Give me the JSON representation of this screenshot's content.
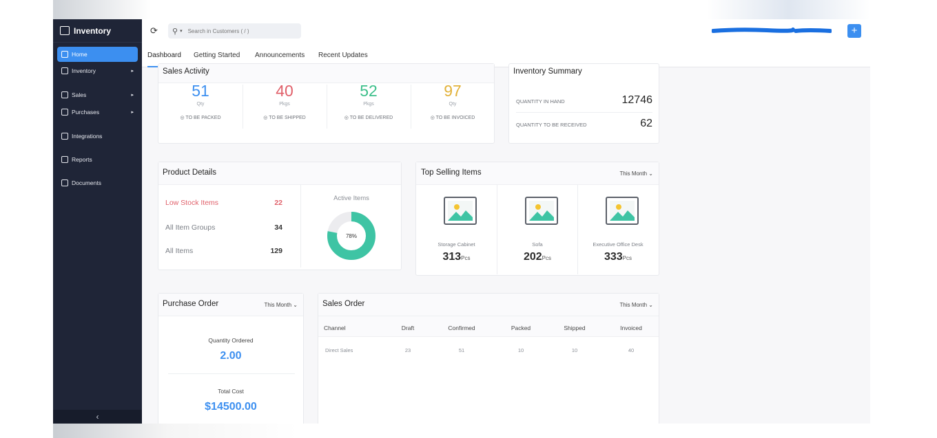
{
  "app": {
    "brand": "Inventory"
  },
  "sidebar": {
    "items": [
      {
        "label": "Home",
        "icon": "home-icon",
        "active": true,
        "has_arrow": false
      },
      {
        "label": "Inventory",
        "icon": "tag-icon",
        "active": false,
        "has_arrow": true
      },
      {
        "label": "Sales",
        "icon": "cart-icon",
        "active": false,
        "has_arrow": true
      },
      {
        "label": "Purchases",
        "icon": "bag-icon",
        "active": false,
        "has_arrow": true
      },
      {
        "label": "Integrations",
        "icon": "integration-icon",
        "active": false,
        "has_arrow": false
      },
      {
        "label": "Reports",
        "icon": "bar-chart-icon",
        "active": false,
        "has_arrow": false
      },
      {
        "label": "Documents",
        "icon": "folder-icon",
        "active": false,
        "has_arrow": false
      }
    ],
    "collapse_glyph": "‹"
  },
  "header": {
    "search_placeholder": "Search in Customers ( / )",
    "plus_glyph": "+"
  },
  "tabs": [
    {
      "label": "Dashboard",
      "active": true
    },
    {
      "label": "Getting Started",
      "active": false
    },
    {
      "label": "Announcements",
      "active": false
    },
    {
      "label": "Recent Updates",
      "active": false
    }
  ],
  "sales_activity": {
    "title": "Sales Activity",
    "stats": [
      {
        "value": "51",
        "unit": "Qty",
        "label": "TO BE PACKED",
        "color": "#3c8ff0"
      },
      {
        "value": "40",
        "unit": "Pkgs",
        "label": "TO BE SHIPPED",
        "color": "#e0606a"
      },
      {
        "value": "52",
        "unit": "Pkgs",
        "label": "TO BE DELIVERED",
        "color": "#3cbf8a"
      },
      {
        "value": "97",
        "unit": "Qty",
        "label": "TO BE INVOICED",
        "color": "#e2b23a"
      }
    ]
  },
  "inventory_summary": {
    "title": "Inventory Summary",
    "rows": [
      {
        "label": "QUANTITY IN HAND",
        "value": "12746"
      },
      {
        "label": "QUANTITY TO BE RECEIVED",
        "value": "62"
      }
    ]
  },
  "product_details": {
    "title": "Product Details",
    "rows": [
      {
        "label": "Low Stock Items",
        "value": "22",
        "highlight": true
      },
      {
        "label": "All Item Groups",
        "value": "34",
        "highlight": false
      },
      {
        "label": "All Items",
        "value": "129",
        "highlight": false
      }
    ],
    "active_items_label": "Active Items",
    "active_percent": 78,
    "active_percent_label": "78%"
  },
  "top_selling": {
    "title": "Top Selling Items",
    "period": "This Month",
    "items": [
      {
        "name": "Storage Cabinet",
        "qty": "313",
        "unit": "Pcs"
      },
      {
        "name": "Sofa",
        "qty": "202",
        "unit": "Pcs"
      },
      {
        "name": "Executive Office Desk",
        "qty": "333",
        "unit": "Pcs"
      }
    ]
  },
  "purchase_order": {
    "title": "Purchase Order",
    "period": "This Month",
    "qty_label": "Quantity Ordered",
    "qty_value": "2.00",
    "cost_label": "Total Cost",
    "cost_value": "$14500.00"
  },
  "sales_order": {
    "title": "Sales Order",
    "period": "This Month",
    "columns": [
      "Channel",
      "Draft",
      "Confirmed",
      "Packed",
      "Shipped",
      "Invoiced"
    ],
    "rows": [
      [
        "Direct Sales",
        "23",
        "51",
        "10",
        "10",
        "40"
      ]
    ]
  },
  "colors": {
    "accent": "#3c8ff0",
    "sidebar_bg": "#1f2537",
    "teal": "#3ec4a4",
    "low_stock_red": "#e0606a"
  }
}
